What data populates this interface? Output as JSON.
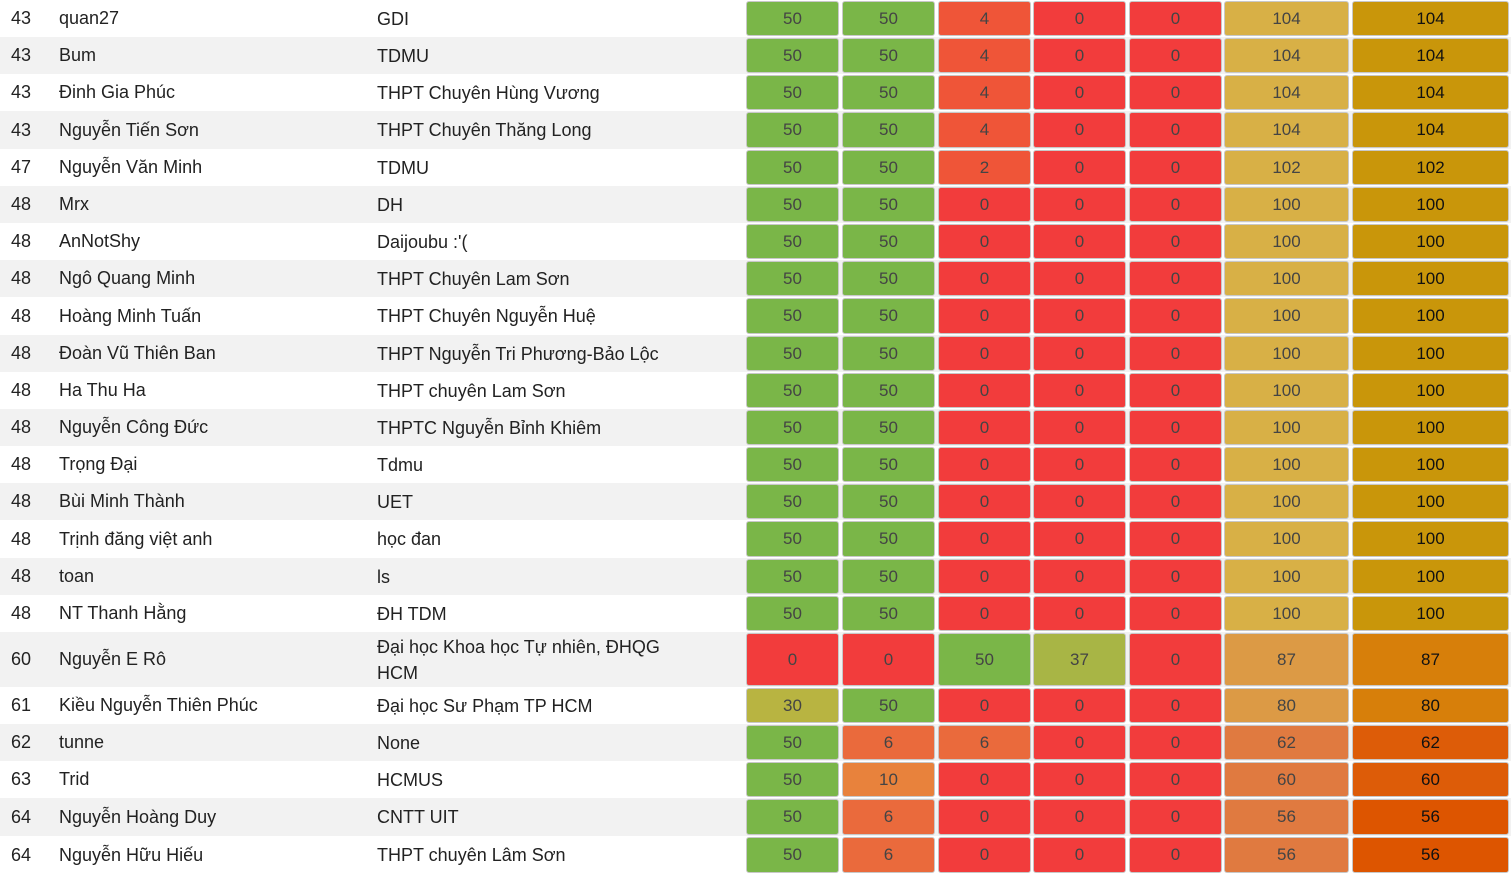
{
  "rows": [
    {
      "rank": "43",
      "name": "quan27",
      "school": "GDI",
      "scores": [
        "50",
        "50",
        "4",
        "0",
        "0"
      ],
      "total": "104",
      "final": "104"
    },
    {
      "rank": "43",
      "name": "Bum",
      "school": "TDMU",
      "scores": [
        "50",
        "50",
        "4",
        "0",
        "0"
      ],
      "total": "104",
      "final": "104"
    },
    {
      "rank": "43",
      "name": "Đinh Gia Phúc",
      "school": "THPT Chuyên Hùng Vương",
      "scores": [
        "50",
        "50",
        "4",
        "0",
        "0"
      ],
      "total": "104",
      "final": "104"
    },
    {
      "rank": "43",
      "name": "Nguyễn Tiến Sơn",
      "school": "THPT Chuyên Thăng Long",
      "scores": [
        "50",
        "50",
        "4",
        "0",
        "0"
      ],
      "total": "104",
      "final": "104"
    },
    {
      "rank": "47",
      "name": "Nguyễn Văn Minh",
      "school": "TDMU",
      "scores": [
        "50",
        "50",
        "2",
        "0",
        "0"
      ],
      "total": "102",
      "final": "102"
    },
    {
      "rank": "48",
      "name": "Mrx",
      "school": "DH",
      "scores": [
        "50",
        "50",
        "0",
        "0",
        "0"
      ],
      "total": "100",
      "final": "100"
    },
    {
      "rank": "48",
      "name": "AnNotShy",
      "school": "Daijoubu :'(",
      "scores": [
        "50",
        "50",
        "0",
        "0",
        "0"
      ],
      "total": "100",
      "final": "100"
    },
    {
      "rank": "48",
      "name": "Ngô Quang Minh",
      "school": "THPT Chuyên Lam Sơn",
      "scores": [
        "50",
        "50",
        "0",
        "0",
        "0"
      ],
      "total": "100",
      "final": "100"
    },
    {
      "rank": "48",
      "name": "Hoàng Minh Tuấn",
      "school": "THPT Chuyên Nguyễn Huệ",
      "scores": [
        "50",
        "50",
        "0",
        "0",
        "0"
      ],
      "total": "100",
      "final": "100"
    },
    {
      "rank": "48",
      "name": "Đoàn Vũ Thiên Ban",
      "school": "THPT Nguyễn Tri Phương-Bảo Lộc",
      "scores": [
        "50",
        "50",
        "0",
        "0",
        "0"
      ],
      "total": "100",
      "final": "100"
    },
    {
      "rank": "48",
      "name": "Ha Thu Ha",
      "school": "THPT chuyên Lam Sơn",
      "scores": [
        "50",
        "50",
        "0",
        "0",
        "0"
      ],
      "total": "100",
      "final": "100"
    },
    {
      "rank": "48",
      "name": "Nguyễn Công Đức",
      "school": "THPTC Nguyễn Bỉnh Khiêm",
      "scores": [
        "50",
        "50",
        "0",
        "0",
        "0"
      ],
      "total": "100",
      "final": "100"
    },
    {
      "rank": "48",
      "name": "Trọng Đại",
      "school": "Tdmu",
      "scores": [
        "50",
        "50",
        "0",
        "0",
        "0"
      ],
      "total": "100",
      "final": "100"
    },
    {
      "rank": "48",
      "name": "Bùi Minh Thành",
      "school": "UET",
      "scores": [
        "50",
        "50",
        "0",
        "0",
        "0"
      ],
      "total": "100",
      "final": "100"
    },
    {
      "rank": "48",
      "name": "Trịnh đăng việt anh",
      "school": "học đan",
      "scores": [
        "50",
        "50",
        "0",
        "0",
        "0"
      ],
      "total": "100",
      "final": "100"
    },
    {
      "rank": "48",
      "name": "toan",
      "school": "ls",
      "scores": [
        "50",
        "50",
        "0",
        "0",
        "0"
      ],
      "total": "100",
      "final": "100"
    },
    {
      "rank": "48",
      "name": "NT Thanh Hằng",
      "school": "ĐH TDM",
      "scores": [
        "50",
        "50",
        "0",
        "0",
        "0"
      ],
      "total": "100",
      "final": "100"
    },
    {
      "rank": "60",
      "name": "Nguyễn E Rô",
      "school": "Đại học Khoa học Tự nhiên, ĐHQG HCM",
      "scores": [
        "0",
        "0",
        "50",
        "37",
        "0"
      ],
      "total": "87",
      "final": "87"
    },
    {
      "rank": "61",
      "name": "Kiều Nguyễn Thiên Phúc",
      "school": "Đại học Sư Phạm TP HCM",
      "scores": [
        "30",
        "50",
        "0",
        "0",
        "0"
      ],
      "total": "80",
      "final": "80"
    },
    {
      "rank": "62",
      "name": "tunne",
      "school": "None",
      "scores": [
        "50",
        "6",
        "6",
        "0",
        "0"
      ],
      "total": "62",
      "final": "62"
    },
    {
      "rank": "63",
      "name": "Trid",
      "school": "HCMUS",
      "scores": [
        "50",
        "10",
        "0",
        "0",
        "0"
      ],
      "total": "60",
      "final": "60"
    },
    {
      "rank": "64",
      "name": "Nguyễn Hoàng Duy",
      "school": "CNTT UIT",
      "scores": [
        "50",
        "6",
        "0",
        "0",
        "0"
      ],
      "total": "56",
      "final": "56"
    },
    {
      "rank": "64",
      "name": "Nguyễn Hữu Hiếu",
      "school": "THPT chuyên Lâm Sơn",
      "scores": [
        "50",
        "6",
        "0",
        "0",
        "0"
      ],
      "total": "56",
      "final": "56"
    }
  ],
  "colors": {
    "row_even": "#ffffff",
    "row_odd": "#f2f2f2",
    "green": "#7ab648",
    "olive": "#a8b545",
    "olive2": "#b8b441",
    "red": "#f23c3c",
    "red_orange": "#ef5538",
    "orange_red": "#ea6a3c",
    "orange": "#e8823c",
    "total_high": "#d8b046",
    "total_mid": "#dc9a45",
    "total_low": "#e07a40",
    "final_high": "#c9960a",
    "final_mid": "#d77f0a",
    "final_low": "#dd5c08",
    "final_low2": "#dd5500"
  }
}
